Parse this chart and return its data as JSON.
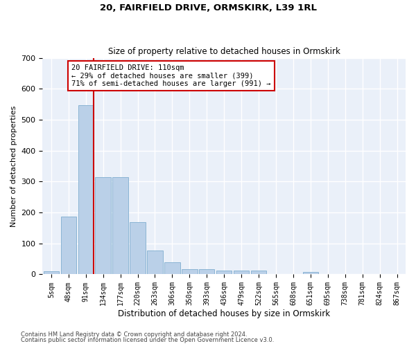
{
  "title1": "20, FAIRFIELD DRIVE, ORMSKIRK, L39 1RL",
  "title2": "Size of property relative to detached houses in Ormskirk",
  "xlabel": "Distribution of detached houses by size in Ormskirk",
  "ylabel": "Number of detached properties",
  "footer1": "Contains HM Land Registry data © Crown copyright and database right 2024.",
  "footer2": "Contains public sector information licensed under the Open Government Licence v3.0.",
  "bar_labels": [
    "5sqm",
    "48sqm",
    "91sqm",
    "134sqm",
    "177sqm",
    "220sqm",
    "263sqm",
    "306sqm",
    "350sqm",
    "393sqm",
    "436sqm",
    "479sqm",
    "522sqm",
    "565sqm",
    "608sqm",
    "651sqm",
    "695sqm",
    "738sqm",
    "781sqm",
    "824sqm",
    "867sqm"
  ],
  "bar_values": [
    10,
    186,
    548,
    315,
    315,
    168,
    77,
    40,
    17,
    17,
    12,
    12,
    12,
    0,
    0,
    8,
    0,
    0,
    0,
    0,
    0
  ],
  "bar_color": "#bad0e8",
  "bar_edgecolor": "#8ab4d4",
  "background_color": "#eaf0f9",
  "grid_color": "#ffffff",
  "redline_color": "#cc0000",
  "redline_bar_index": 2,
  "annotation_text": "20 FAIRFIELD DRIVE: 110sqm\n← 29% of detached houses are smaller (399)\n71% of semi-detached houses are larger (991) →",
  "annotation_box_color": "#ffffff",
  "annotation_border_color": "#cc0000",
  "ylim": [
    0,
    700
  ],
  "yticks": [
    0,
    100,
    200,
    300,
    400,
    500,
    600,
    700
  ]
}
